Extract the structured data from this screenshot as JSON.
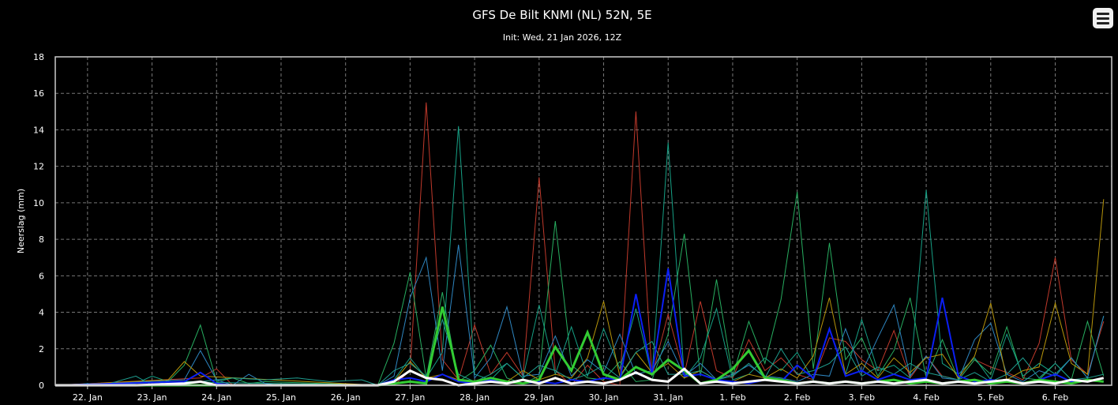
{
  "chart_data": {
    "type": "line",
    "title": "GFS De Bilt KNMI (NL) 52N, 5E",
    "subtitle": "Init: Wed, 21 Jan 2026, 12Z",
    "ylabel": "Neerslag (mm)",
    "xlabel": "",
    "ylim": [
      0,
      18
    ],
    "yticks": [
      0,
      2,
      4,
      6,
      8,
      10,
      12,
      14,
      16,
      18
    ],
    "xlim": [
      0,
      65.5
    ],
    "grid": true,
    "legend": "none",
    "categories": [
      "22. Jan",
      "23. Jan",
      "24. Jan",
      "25. Jan",
      "26. Jan",
      "27. Jan",
      "28. Jan",
      "29. Jan",
      "30. Jan",
      "31. Jan",
      "1. Feb",
      "2. Feb",
      "3. Feb",
      "4. Feb",
      "5. Feb",
      "6. Feb"
    ],
    "category_positions": [
      2,
      6,
      10,
      14,
      18,
      22,
      26,
      30,
      34,
      38,
      42,
      46,
      50,
      54,
      58,
      62
    ],
    "series": [
      {
        "color": "#c0392b",
        "width": 1,
        "x": [
          0,
          9,
          10,
          11,
          20,
          21,
          22,
          23,
          24,
          25,
          26,
          27,
          28,
          29,
          30,
          31,
          32,
          33,
          34,
          35,
          36,
          37,
          38,
          39,
          40,
          41,
          42,
          43,
          44,
          45,
          46,
          47,
          48,
          49,
          50,
          51,
          52,
          53,
          54,
          55,
          56,
          57,
          58,
          59,
          60,
          61,
          62,
          63,
          64,
          65
        ],
        "y": [
          0,
          0.4,
          0.9,
          0,
          0,
          0,
          0.8,
          15.5,
          1.4,
          0.3,
          3.3,
          0.6,
          1.8,
          0.5,
          11.4,
          0.8,
          0,
          1.1,
          0.2,
          0,
          15,
          0.5,
          3.9,
          0.6,
          4.6,
          0.8,
          0.4,
          2.5,
          0.8,
          1.5,
          0.6,
          0.3,
          2.6,
          2.4,
          1.4,
          0.8,
          3,
          0.4,
          1.6,
          0.5,
          0.3,
          1.4,
          1,
          0.7,
          0.3,
          2.3,
          7,
          1.4,
          0.6,
          3.5
        ]
      },
      {
        "color": "#27ae60",
        "width": 1,
        "x": [
          0,
          7,
          8,
          9,
          10,
          11,
          12,
          13,
          20,
          21,
          22,
          23,
          24,
          25,
          26,
          27,
          28,
          29,
          30,
          31,
          32,
          33,
          34,
          35,
          36,
          37,
          38,
          39,
          40,
          41,
          42,
          43,
          44,
          45,
          46,
          47,
          48,
          49,
          50,
          51,
          52,
          53,
          54,
          55,
          56,
          57,
          58,
          59,
          60,
          61,
          62,
          63,
          64,
          65
        ],
        "y": [
          0,
          0.2,
          1.1,
          3.3,
          0.2,
          0.4,
          0.1,
          0.2,
          0,
          2.3,
          6.2,
          0.4,
          5.1,
          0.2,
          0.8,
          2.2,
          0.4,
          0.1,
          0.5,
          9,
          1.1,
          0.4,
          0.3,
          1.3,
          0.2,
          0.3,
          2.8,
          8.3,
          0.5,
          5.8,
          0.5,
          3.5,
          1.2,
          4.7,
          10.6,
          0.9,
          7.8,
          1.4,
          2.6,
          0.5,
          1.9,
          4.8,
          0.4,
          2.5,
          0.3,
          1.4,
          0.6,
          3.2,
          0.4,
          0.3,
          1.2,
          0.3,
          3.5,
          0.5
        ]
      },
      {
        "color": "#16a085",
        "width": 1,
        "x": [
          0,
          5,
          6,
          7,
          20,
          21,
          22,
          23,
          24,
          25,
          26,
          27,
          28,
          29,
          30,
          31,
          32,
          33,
          34,
          35,
          36,
          37,
          38,
          39,
          40,
          41,
          42,
          43,
          44,
          45,
          46,
          47,
          48,
          49,
          50,
          51,
          52,
          53,
          54,
          55,
          56,
          57,
          58,
          59,
          60,
          61,
          62,
          63,
          64,
          65
        ],
        "y": [
          0,
          0.1,
          0.5,
          0.2,
          0,
          0.3,
          1.5,
          0.4,
          1.8,
          14.2,
          0.6,
          0.3,
          1.2,
          0.4,
          4.4,
          0.6,
          3.2,
          0.5,
          3.1,
          0.9,
          4.2,
          0.5,
          13.3,
          0.4,
          1.5,
          4.2,
          0.3,
          0.6,
          1.5,
          0.8,
          1.8,
          0.3,
          3.1,
          0.6,
          3.6,
          0.8,
          1.1,
          0.4,
          10.7,
          1.2,
          0.6,
          1.5,
          0.3,
          2.8,
          0.5,
          1.2,
          0.6,
          1.5,
          0.4,
          3.8
        ]
      },
      {
        "color": "#2e86c1",
        "width": 1,
        "x": [
          0,
          8,
          9,
          10,
          11,
          12,
          13,
          14,
          20,
          21,
          22,
          23,
          24,
          25,
          26,
          27,
          28,
          29,
          30,
          31,
          32,
          33,
          34,
          35,
          36,
          37,
          38,
          39,
          40,
          41,
          42,
          43,
          44,
          45,
          46,
          47,
          48,
          49,
          50,
          51,
          52,
          53,
          54,
          55,
          56,
          57,
          58,
          59,
          60,
          61,
          62,
          63,
          64,
          65
        ],
        "y": [
          0,
          0.3,
          1.9,
          0.3,
          0,
          0.6,
          0.1,
          0,
          0,
          0.5,
          4.8,
          7,
          0.8,
          7.7,
          0.4,
          1.5,
          4.3,
          0.5,
          0.6,
          2.7,
          0.5,
          1.4,
          0.7,
          2.8,
          0.6,
          0.8,
          2.4,
          0.5,
          1.2,
          0.3,
          0.6,
          1.1,
          0.5,
          0.4,
          0.2,
          0.6,
          0.5,
          3.1,
          0.7,
          2.6,
          4.4,
          0.5,
          1.6,
          0.4,
          0.3,
          2.5,
          3.4,
          0.6,
          0.2,
          0.8,
          0.5,
          1.5,
          0.4,
          3.8
        ]
      },
      {
        "color": "#b7950b",
        "width": 1,
        "x": [
          0,
          7,
          8,
          9,
          20,
          21,
          22,
          23,
          24,
          25,
          26,
          27,
          28,
          29,
          30,
          31,
          32,
          33,
          34,
          35,
          36,
          37,
          38,
          39,
          40,
          41,
          42,
          43,
          44,
          45,
          46,
          47,
          48,
          49,
          50,
          51,
          52,
          53,
          54,
          55,
          56,
          57,
          58,
          59,
          60,
          61,
          62,
          63,
          64,
          65
        ],
        "y": [
          0,
          0.3,
          1.3,
          0.5,
          0,
          0.2,
          1.3,
          0.4,
          0.6,
          0.3,
          0.1,
          0.4,
          0.2,
          0.8,
          0.3,
          0.6,
          0.4,
          1.5,
          4.6,
          0.5,
          1.8,
          0.7,
          1.2,
          0.4,
          0.8,
          0.3,
          0.2,
          0.6,
          0.4,
          0.9,
          0.4,
          1.6,
          4.8,
          0.6,
          1.2,
          0.4,
          1.5,
          0.7,
          1.5,
          1.7,
          0.4,
          1.6,
          4.5,
          0.3,
          0.8,
          1,
          4.5,
          1.2,
          0.6,
          10.2
        ]
      },
      {
        "color": "#1f9e8f",
        "width": 1,
        "x": [
          0,
          1,
          2,
          3,
          5,
          6,
          7,
          9,
          11,
          13,
          15,
          17,
          19,
          20,
          21,
          22,
          23,
          24,
          25,
          26,
          27,
          28,
          29,
          30,
          31,
          32,
          33,
          34,
          35,
          36,
          37,
          38,
          39,
          40,
          41,
          42,
          43,
          44,
          45,
          46,
          47,
          48,
          49,
          50,
          51,
          52,
          53,
          54,
          55,
          56,
          57,
          58,
          59,
          60,
          61,
          62,
          63,
          64,
          65
        ],
        "y": [
          0,
          0,
          0.1,
          0,
          0.5,
          0,
          0.2,
          0.2,
          0.4,
          0.3,
          0.4,
          0.2,
          0.3,
          0,
          0.8,
          1.2,
          0.5,
          3.6,
          0.6,
          0.2,
          0.6,
          1.2,
          0.4,
          1.1,
          0.8,
          0.3,
          0.6,
          1.1,
          0.4,
          1.8,
          2.4,
          0.6,
          0.6,
          0.8,
          0.3,
          0.5,
          1.2,
          0.4,
          2,
          0.6,
          0.8,
          1.2,
          2.1,
          0.5,
          1,
          0.6,
          1.2,
          0.7,
          0.5,
          0.3,
          0.7,
          0.2,
          0.6,
          1.5,
          0.4,
          1.2,
          0.3,
          0.4,
          0.6
        ]
      },
      {
        "color": "#0b1ff5",
        "width": 2,
        "x": [
          0,
          8,
          9,
          10,
          11,
          20,
          21,
          22,
          23,
          24,
          25,
          26,
          27,
          28,
          29,
          30,
          31,
          32,
          33,
          34,
          35,
          36,
          37,
          38,
          39,
          40,
          41,
          42,
          43,
          44,
          45,
          46,
          47,
          48,
          49,
          50,
          51,
          52,
          53,
          54,
          55,
          56,
          57,
          58,
          59,
          60,
          61,
          62,
          63,
          64,
          65
        ],
        "y": [
          0,
          0.2,
          0.7,
          0.1,
          0,
          0,
          0.3,
          0.4,
          0.2,
          0.6,
          0.2,
          0.1,
          0.3,
          0.2,
          0.1,
          0.2,
          0.1,
          0.3,
          0.2,
          0.4,
          0.3,
          5,
          0.6,
          6.4,
          0.5,
          0.6,
          0.3,
          0.2,
          0.1,
          0.3,
          0.2,
          1.1,
          0.4,
          3.1,
          0.5,
          0.8,
          0.3,
          0.6,
          0.3,
          0.4,
          4.8,
          0.5,
          0.2,
          0.3,
          0.2,
          0.1,
          0.3,
          0.6,
          0.2,
          0.3,
          0.2
        ]
      },
      {
        "color": "#33cc33",
        "width": 3,
        "x": [
          0,
          20,
          21,
          22,
          23,
          24,
          25,
          26,
          27,
          28,
          29,
          30,
          31,
          32,
          33,
          34,
          35,
          36,
          37,
          38,
          39,
          40,
          41,
          42,
          43,
          44,
          45,
          46,
          47,
          48,
          49,
          50,
          51,
          52,
          53,
          54,
          55,
          56,
          57,
          58,
          59,
          60,
          61,
          62,
          63,
          64,
          65
        ],
        "y": [
          0,
          0,
          0.1,
          0.2,
          0.1,
          4.3,
          0.3,
          0.2,
          0.4,
          0.2,
          0.1,
          0.3,
          2.1,
          0.8,
          2.9,
          0.6,
          0.3,
          1,
          0.6,
          1.4,
          0.8,
          0.1,
          0.3,
          0.9,
          1.9,
          0.4,
          0.3,
          0.1,
          0.2,
          0.1,
          0.2,
          0.1,
          0.2,
          0.3,
          0.1,
          0.2,
          0.1,
          0.2,
          0.3,
          0.1,
          0.2,
          0.1,
          0.3,
          0.2,
          0.1,
          0.3,
          0.2
        ]
      },
      {
        "color": "#ffffff",
        "width": 3,
        "x": [
          0,
          5,
          8,
          9,
          10,
          20,
          21,
          22,
          23,
          24,
          25,
          26,
          27,
          28,
          29,
          30,
          31,
          32,
          33,
          34,
          35,
          36,
          37,
          38,
          39,
          40,
          41,
          42,
          43,
          44,
          45,
          46,
          47,
          48,
          49,
          50,
          51,
          52,
          53,
          54,
          55,
          56,
          57,
          58,
          59,
          60,
          61,
          62,
          63,
          64,
          65
        ],
        "y": [
          0,
          0,
          0.1,
          0.2,
          0,
          0,
          0.2,
          0.8,
          0.4,
          0.3,
          0,
          0.1,
          0.2,
          0.1,
          0.3,
          0.1,
          0.4,
          0.1,
          0.2,
          0.1,
          0.3,
          0.7,
          0.3,
          0.2,
          0.9,
          0.1,
          0.2,
          0.1,
          0.2,
          0.3,
          0.2,
          0.1,
          0.2,
          0.1,
          0.2,
          0.1,
          0.2,
          0.1,
          0.2,
          0.3,
          0.1,
          0.2,
          0.1,
          0.2,
          0.3,
          0.1,
          0.2,
          0.1,
          0.3,
          0.2,
          0.4
        ]
      }
    ],
    "colors": {
      "background": "#000000",
      "grid": "#777777",
      "axis": "#cccccc",
      "text": "#ffffff"
    }
  },
  "menu": {
    "icon": "hamburger-menu-icon"
  }
}
